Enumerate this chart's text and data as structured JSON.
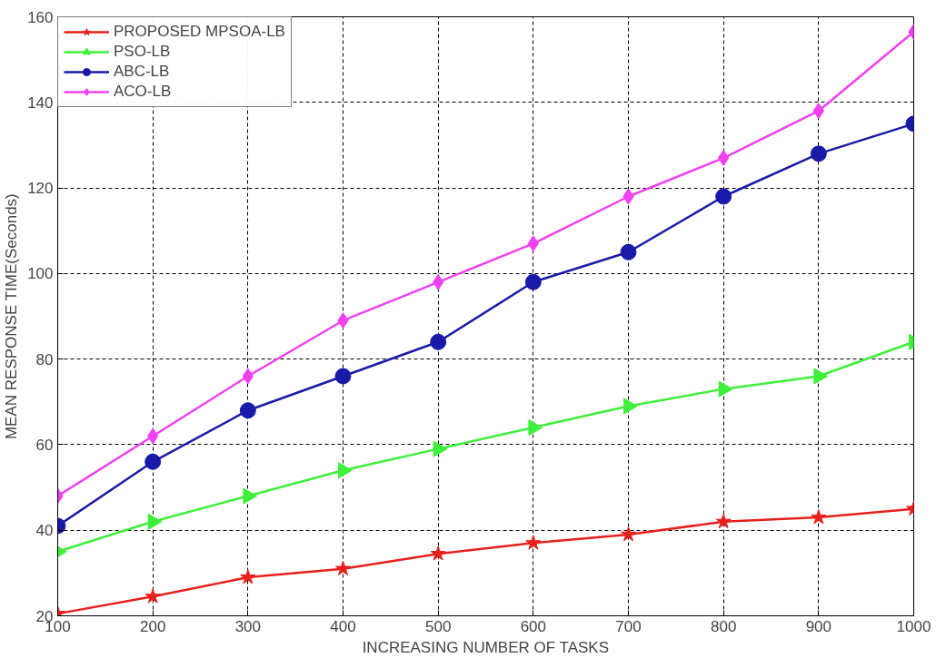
{
  "chart_data": {
    "type": "line",
    "xlabel": "INCREASING NUMBER OF TASKS",
    "ylabel": "MEAN RESPONSE TIME(Seconds)",
    "x": [
      100,
      200,
      300,
      400,
      500,
      600,
      700,
      800,
      900,
      1000
    ],
    "xlim": [
      100,
      1000
    ],
    "xticks": [
      100,
      200,
      300,
      400,
      500,
      600,
      700,
      800,
      900,
      1000
    ],
    "ylim": [
      20,
      160
    ],
    "yticks": [
      20,
      40,
      60,
      80,
      100,
      120,
      140,
      160
    ],
    "grid": true,
    "legend": "top left",
    "line_style": "solid",
    "series": [
      {
        "name": "PROPOSED MPSOA-LB",
        "color": "#e8201c",
        "marker": "star",
        "values": [
          20.5,
          24.5,
          29,
          31,
          34.5,
          37,
          39,
          42,
          43,
          45
        ]
      },
      {
        "name": "PSO-LB",
        "color": "#3ef03a",
        "marker": "triangle",
        "values": [
          35,
          42,
          48,
          54,
          59,
          64,
          69,
          73,
          76,
          84
        ]
      },
      {
        "name": "ABC-LB",
        "color": "#1a1aa8",
        "marker": "circle",
        "values": [
          41,
          56,
          68,
          76,
          84,
          98,
          105,
          118,
          128,
          135
        ]
      },
      {
        "name": "ACO-LB",
        "color": "#f040f0",
        "marker": "diamond",
        "values": [
          48,
          62,
          76,
          89,
          98,
          107,
          118,
          127,
          138,
          156.5
        ]
      }
    ]
  }
}
